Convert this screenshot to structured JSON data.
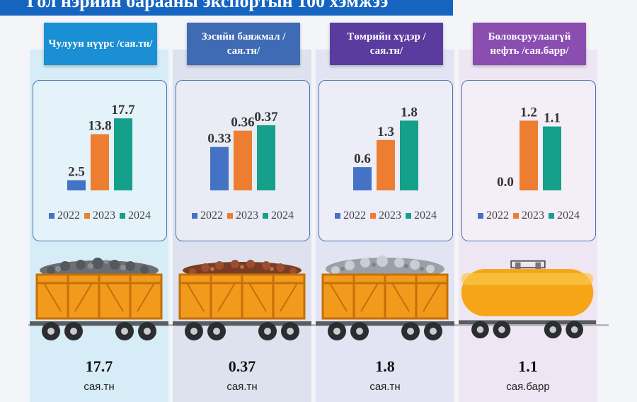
{
  "title": "Гол нэрийн барааны экспортын 100 хэмжээ",
  "series_years": [
    "2022",
    "2023",
    "2024"
  ],
  "colors": {
    "y2022": "#4472c4",
    "y2023": "#ed7d31",
    "y2024": "#14a08a"
  },
  "chart_data": [
    {
      "type": "bar",
      "title": "Чулуун нүүрс /сая.тн/",
      "categories": [
        "2022",
        "2023",
        "2024"
      ],
      "values": [
        2.5,
        13.8,
        17.7
      ],
      "labels": [
        "2.5",
        "13.8",
        "17.7"
      ],
      "ylim": [
        0,
        20
      ]
    },
    {
      "type": "bar",
      "title": "Зэсийн баяжмал /сая.тн/",
      "categories": [
        "2022",
        "2023",
        "2024"
      ],
      "values": [
        0.33,
        0.36,
        0.37
      ],
      "labels": [
        "0.33",
        "0.36",
        "0.37"
      ],
      "ylim": [
        0.25,
        0.4
      ]
    },
    {
      "type": "bar",
      "title": "Төмрийн хүдэр /сая.тн/",
      "categories": [
        "2022",
        "2023",
        "2024"
      ],
      "values": [
        0.6,
        1.3,
        1.8
      ],
      "labels": [
        "0.6",
        "1.3",
        "1.8"
      ],
      "ylim": [
        0,
        2.1
      ]
    },
    {
      "type": "bar",
      "title": "Боловсруулаагүй нефть /сая.барр/",
      "categories": [
        "2022",
        "2023",
        "2024"
      ],
      "values": [
        0.0,
        1.2,
        1.1
      ],
      "labels": [
        "0.0",
        "1.2",
        "1.1"
      ],
      "ylim": [
        0,
        1.4
      ]
    }
  ],
  "columns": [
    {
      "label": "Чулуун нүүрс /сая.тн/",
      "value": "17.7",
      "unit": "сая.тн",
      "cargo": "coal"
    },
    {
      "label": "Зэсийн баяжмал /сая.тн/",
      "value": "0.37",
      "unit": "сая.тн",
      "cargo": "copper"
    },
    {
      "label": "Төмрийн хүдэр /сая.тн/",
      "value": "1.8",
      "unit": "сая.тн",
      "cargo": "iron"
    },
    {
      "label": "Боловсруулаагүй нефть /сая.барр/",
      "value": "1.1",
      "unit": "сая.барр",
      "cargo": "oil"
    }
  ]
}
